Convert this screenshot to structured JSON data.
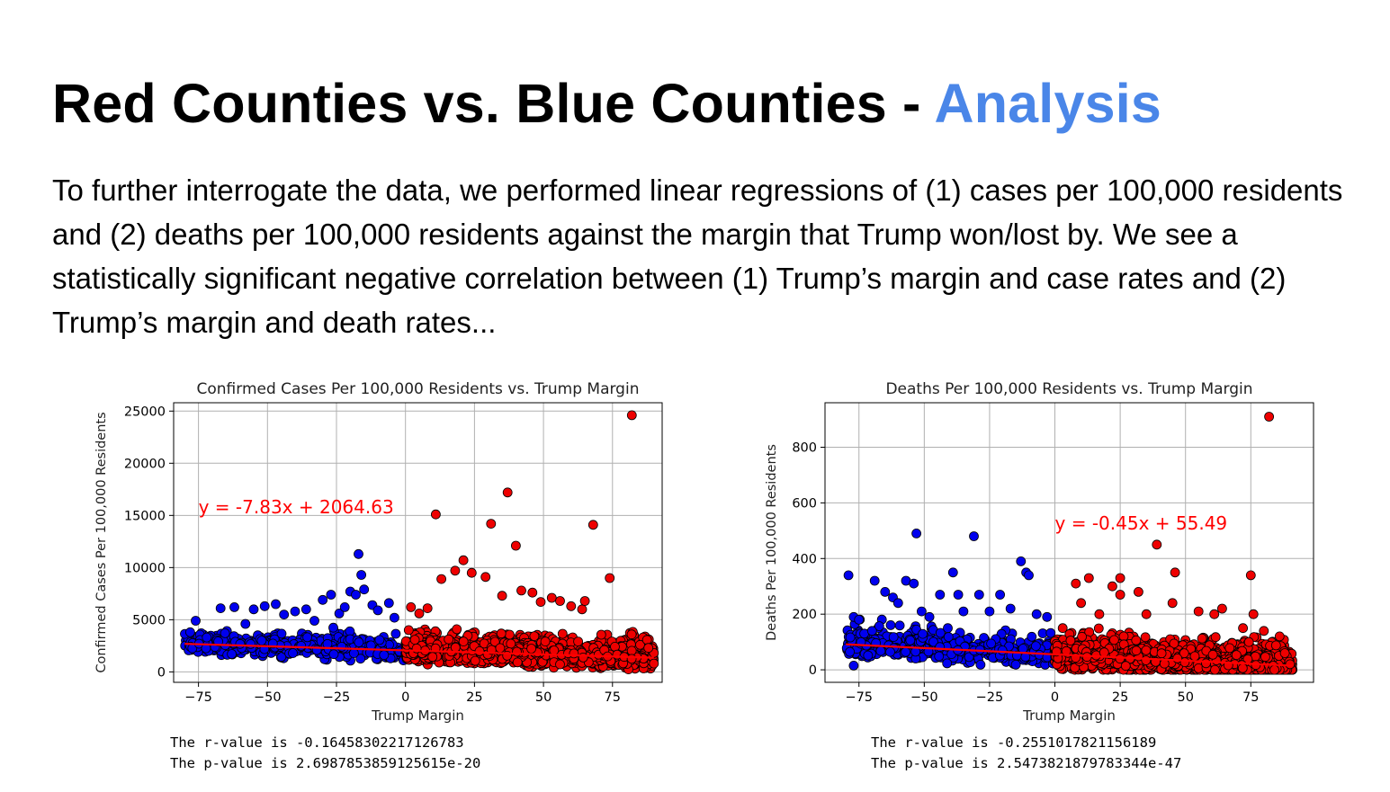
{
  "slide": {
    "title_main": "Red Counties vs. Blue Counties - ",
    "title_accent": "Analysis",
    "body": "To further interrogate the data, we performed linear regressions of (1) cases per 100,000 residents and (2) deaths per 100,000 residents against the margin that Trump won/lost by. We see a statistically significant negative correlation between (1) Trump’s margin and case rates and (2) Trump’s margin and death rates..."
  },
  "colors": {
    "accent": "#4a86e8",
    "blue": "#0000ee",
    "red": "#ee0000",
    "line": "#ff0000",
    "grid": "#b0b0b0"
  },
  "chart_data": [
    {
      "type": "scatter",
      "title": "Confirmed Cases Per 100,000 Residents vs. Trump Margin",
      "xlabel": "Trump Margin",
      "ylabel": "Confirmed Cases Per 100,000 Residents",
      "xlim": [
        -84,
        93
      ],
      "ylim": [
        -1000,
        25800
      ],
      "xticks": [
        -75,
        -50,
        -25,
        0,
        25,
        50,
        75
      ],
      "yticks": [
        0,
        5000,
        10000,
        15000,
        20000,
        25000
      ],
      "grid": true,
      "regression": {
        "slope": -7.83,
        "intercept": 2064.63,
        "x_range": [
          -80,
          90
        ],
        "label": "y = -7.83x + 2064.63",
        "label_pos": [
          -75,
          15200
        ]
      },
      "stats": {
        "r_text": "The r-value is -0.16458302217126783",
        "p_text": "The p-value is 2.6987853859125615e-20"
      },
      "noise": {
        "base": 2064.63,
        "slope": -7.83,
        "spread": 1400,
        "min": 0,
        "max": 5600,
        "n_blue": 480,
        "n_red": 2600,
        "x_min": -80,
        "x_max": 90,
        "seed": 11
      },
      "series": [
        {
          "name": "Blue counties",
          "color": "#0000ee",
          "points": [
            [
              -78,
              3800
            ],
            [
              -76,
              4900
            ],
            [
              -72,
              3300
            ],
            [
              -67,
              6100
            ],
            [
              -62,
              6200
            ],
            [
              -58,
              4600
            ],
            [
              -55,
              6000
            ],
            [
              -51,
              6300
            ],
            [
              -47,
              6500
            ],
            [
              -44,
              5500
            ],
            [
              -40,
              5800
            ],
            [
              -36,
              6000
            ],
            [
              -33,
              4900
            ],
            [
              -30,
              6900
            ],
            [
              -27,
              7400
            ],
            [
              -24,
              5600
            ],
            [
              -22,
              6200
            ],
            [
              -20,
              7700
            ],
            [
              -18,
              7400
            ],
            [
              -17,
              11300
            ],
            [
              -16,
              9300
            ],
            [
              -15,
              7900
            ],
            [
              -12,
              6400
            ],
            [
              -10,
              5900
            ],
            [
              -6,
              6600
            ],
            [
              -4,
              5200
            ]
          ]
        },
        {
          "name": "Red counties",
          "color": "#ee0000",
          "points": [
            [
              2,
              6200
            ],
            [
              5,
              5600
            ],
            [
              8,
              6100
            ],
            [
              11,
              15100
            ],
            [
              13,
              8900
            ],
            [
              18,
              9700
            ],
            [
              21,
              10700
            ],
            [
              24,
              9500
            ],
            [
              29,
              9100
            ],
            [
              31,
              14200
            ],
            [
              35,
              7300
            ],
            [
              37,
              17200
            ],
            [
              40,
              12100
            ],
            [
              42,
              7800
            ],
            [
              46,
              7600
            ],
            [
              49,
              6700
            ],
            [
              53,
              7100
            ],
            [
              56,
              6800
            ],
            [
              60,
              6300
            ],
            [
              64,
              6000
            ],
            [
              65,
              6800
            ],
            [
              68,
              14100
            ],
            [
              74,
              9000
            ],
            [
              82,
              24600
            ],
            [
              88,
              2300
            ],
            [
              90,
              800
            ]
          ]
        }
      ]
    },
    {
      "type": "scatter",
      "title": "Deaths Per 100,000 Residents vs. Trump Margin",
      "xlabel": "Trump Margin",
      "ylabel": "Deaths Per 100,000 Residents",
      "xlim": [
        -88,
        99
      ],
      "ylim": [
        -45,
        960
      ],
      "xticks": [
        -75,
        -50,
        -25,
        0,
        25,
        50,
        75
      ],
      "yticks": [
        0,
        200,
        400,
        600,
        800
      ],
      "grid": true,
      "regression": {
        "slope": -0.45,
        "intercept": 55.49,
        "x_range": [
          -80,
          91
        ],
        "label": "y = -0.45x + 55.49",
        "label_pos": [
          0,
          505
        ]
      },
      "stats": {
        "r_text": "The r-value is -0.2551017821156189",
        "p_text": "The p-value is 2.5473821879783344e-47"
      },
      "noise": {
        "base": 55.49,
        "slope": -0.45,
        "spread": 62,
        "min": 0,
        "max": 215,
        "n_blue": 480,
        "n_red": 2600,
        "x_min": -80,
        "x_max": 91,
        "seed": 23
      },
      "series": [
        {
          "name": "Blue counties",
          "color": "#0000ee",
          "points": [
            [
              -79,
              340
            ],
            [
              -77,
              190
            ],
            [
              -77,
              15
            ],
            [
              -75,
              180
            ],
            [
              -73,
              130
            ],
            [
              -70,
              140
            ],
            [
              -69,
              320
            ],
            [
              -65,
              280
            ],
            [
              -62,
              260
            ],
            [
              -60,
              240
            ],
            [
              -57,
              320
            ],
            [
              -54,
              310
            ],
            [
              -53,
              490
            ],
            [
              -51,
              210
            ],
            [
              -48,
              190
            ],
            [
              -44,
              270
            ],
            [
              -41,
              150
            ],
            [
              -39,
              350
            ],
            [
              -37,
              270
            ],
            [
              -35,
              210
            ],
            [
              -31,
              480
            ],
            [
              -29,
              270
            ],
            [
              -25,
              210
            ],
            [
              -21,
              270
            ],
            [
              -17,
              220
            ],
            [
              -13,
              390
            ],
            [
              -11,
              350
            ],
            [
              -10,
              340
            ],
            [
              -7,
              200
            ],
            [
              -3,
              190
            ]
          ]
        },
        {
          "name": "Red counties",
          "color": "#ee0000",
          "points": [
            [
              3,
              150
            ],
            [
              8,
              310
            ],
            [
              10,
              240
            ],
            [
              13,
              330
            ],
            [
              17,
              200
            ],
            [
              22,
              300
            ],
            [
              25,
              330
            ],
            [
              25,
              270
            ],
            [
              32,
              280
            ],
            [
              35,
              200
            ],
            [
              39,
              450
            ],
            [
              45,
              240
            ],
            [
              46,
              350
            ],
            [
              55,
              210
            ],
            [
              61,
              200
            ],
            [
              64,
              220
            ],
            [
              72,
              150
            ],
            [
              75,
              340
            ],
            [
              76,
              200
            ],
            [
              80,
              140
            ],
            [
              82,
              910
            ],
            [
              86,
              120
            ],
            [
              88,
              60
            ],
            [
              90,
              20
            ]
          ]
        }
      ]
    }
  ]
}
